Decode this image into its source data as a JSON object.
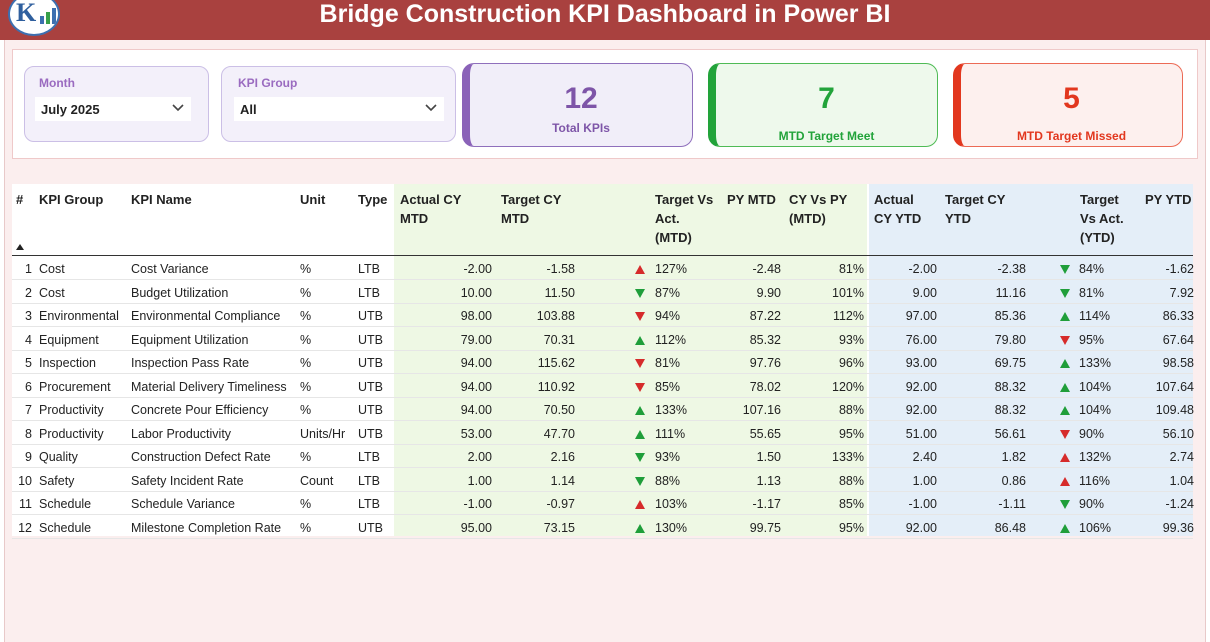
{
  "header": {
    "title": "Bridge Construction KPI Dashboard in Power BI"
  },
  "slicers": {
    "month": {
      "label": "Month",
      "value": "July 2025"
    },
    "kpi_group": {
      "label": "KPI Group",
      "value": "All"
    }
  },
  "cards": {
    "total": {
      "value": "12",
      "label": "Total KPIs",
      "color": "#7e55a8"
    },
    "meet": {
      "value": "7",
      "label": "MTD Target Meet",
      "color": "#22a33a"
    },
    "missed": {
      "value": "5",
      "label": "MTD Target Missed",
      "color": "#e2371e"
    }
  },
  "colors": {
    "mtd_shade": "#eef8e4",
    "ytd_shade": "#e4eef8",
    "up": "#1f9e3a",
    "down": "#d62b2b"
  },
  "table": {
    "headers": {
      "num": "#",
      "group": "KPI Group",
      "name": "KPI Name",
      "unit": "Unit",
      "type": "Type",
      "act_mtd": [
        "Actual CY",
        "MTD"
      ],
      "tgt_mtd": [
        "Target CY",
        "MTD"
      ],
      "tva_mtd": [
        "Target Vs",
        "Act.",
        "(MTD)"
      ],
      "py_mtd": [
        "PY MTD"
      ],
      "cvp_mtd": [
        "CY Vs PY",
        "(MTD)"
      ],
      "act_ytd": [
        "Actual",
        "CY YTD"
      ],
      "tgt_ytd": [
        "Target CY",
        "YTD"
      ],
      "tva_ytd": [
        "Target",
        "Vs Act.",
        "(YTD)"
      ],
      "py_ytd": [
        "PY YTD"
      ]
    },
    "rows": [
      {
        "num": "1",
        "group": "Cost",
        "name": "Cost Variance",
        "unit": "%",
        "type": "LTB",
        "act_mtd": "-2.00",
        "tgt_mtd": "-1.58",
        "mtd_icon": "up-red",
        "tva_mtd": "127%",
        "py_mtd": "-2.48",
        "cvp_mtd": "81%",
        "act_ytd": "-2.00",
        "tgt_ytd": "-2.38",
        "ytd_icon": "down-green",
        "tva_ytd": "84%",
        "py_ytd": "-1.62"
      },
      {
        "num": "2",
        "group": "Cost",
        "name": "Budget Utilization",
        "unit": "%",
        "type": "LTB",
        "act_mtd": "10.00",
        "tgt_mtd": "11.50",
        "mtd_icon": "down-green",
        "tva_mtd": "87%",
        "py_mtd": "9.90",
        "cvp_mtd": "101%",
        "act_ytd": "9.00",
        "tgt_ytd": "11.16",
        "ytd_icon": "down-green",
        "tva_ytd": "81%",
        "py_ytd": "7.92"
      },
      {
        "num": "3",
        "group": "Environmental",
        "name": "Environmental Compliance",
        "unit": "%",
        "type": "UTB",
        "act_mtd": "98.00",
        "tgt_mtd": "103.88",
        "mtd_icon": "down-red",
        "tva_mtd": "94%",
        "py_mtd": "87.22",
        "cvp_mtd": "112%",
        "act_ytd": "97.00",
        "tgt_ytd": "85.36",
        "ytd_icon": "up-green",
        "tva_ytd": "114%",
        "py_ytd": "86.33"
      },
      {
        "num": "4",
        "group": "Equipment",
        "name": "Equipment Utilization",
        "unit": "%",
        "type": "UTB",
        "act_mtd": "79.00",
        "tgt_mtd": "70.31",
        "mtd_icon": "up-green",
        "tva_mtd": "112%",
        "py_mtd": "85.32",
        "cvp_mtd": "93%",
        "act_ytd": "76.00",
        "tgt_ytd": "79.80",
        "ytd_icon": "down-red",
        "tva_ytd": "95%",
        "py_ytd": "67.64"
      },
      {
        "num": "5",
        "group": "Inspection",
        "name": "Inspection Pass Rate",
        "unit": "%",
        "type": "UTB",
        "act_mtd": "94.00",
        "tgt_mtd": "115.62",
        "mtd_icon": "down-red",
        "tva_mtd": "81%",
        "py_mtd": "97.76",
        "cvp_mtd": "96%",
        "act_ytd": "93.00",
        "tgt_ytd": "69.75",
        "ytd_icon": "up-green",
        "tva_ytd": "133%",
        "py_ytd": "98.58"
      },
      {
        "num": "6",
        "group": "Procurement",
        "name": "Material Delivery Timeliness",
        "unit": "%",
        "type": "UTB",
        "act_mtd": "94.00",
        "tgt_mtd": "110.92",
        "mtd_icon": "down-red",
        "tva_mtd": "85%",
        "py_mtd": "78.02",
        "cvp_mtd": "120%",
        "act_ytd": "92.00",
        "tgt_ytd": "88.32",
        "ytd_icon": "up-green",
        "tva_ytd": "104%",
        "py_ytd": "107.64"
      },
      {
        "num": "7",
        "group": "Productivity",
        "name": "Concrete Pour Efficiency",
        "unit": "%",
        "type": "UTB",
        "act_mtd": "94.00",
        "tgt_mtd": "70.50",
        "mtd_icon": "up-green",
        "tva_mtd": "133%",
        "py_mtd": "107.16",
        "cvp_mtd": "88%",
        "act_ytd": "92.00",
        "tgt_ytd": "88.32",
        "ytd_icon": "up-green",
        "tva_ytd": "104%",
        "py_ytd": "109.48"
      },
      {
        "num": "8",
        "group": "Productivity",
        "name": "Labor Productivity",
        "unit": "Units/Hr",
        "type": "UTB",
        "act_mtd": "53.00",
        "tgt_mtd": "47.70",
        "mtd_icon": "up-green",
        "tva_mtd": "111%",
        "py_mtd": "55.65",
        "cvp_mtd": "95%",
        "act_ytd": "51.00",
        "tgt_ytd": "56.61",
        "ytd_icon": "down-red",
        "tva_ytd": "90%",
        "py_ytd": "56.10"
      },
      {
        "num": "9",
        "group": "Quality",
        "name": "Construction Defect Rate",
        "unit": "%",
        "type": "LTB",
        "act_mtd": "2.00",
        "tgt_mtd": "2.16",
        "mtd_icon": "down-green",
        "tva_mtd": "93%",
        "py_mtd": "1.50",
        "cvp_mtd": "133%",
        "act_ytd": "2.40",
        "tgt_ytd": "1.82",
        "ytd_icon": "up-red",
        "tva_ytd": "132%",
        "py_ytd": "2.74"
      },
      {
        "num": "10",
        "group": "Safety",
        "name": "Safety Incident Rate",
        "unit": "Count",
        "type": "LTB",
        "act_mtd": "1.00",
        "tgt_mtd": "1.14",
        "mtd_icon": "down-green",
        "tva_mtd": "88%",
        "py_mtd": "1.13",
        "cvp_mtd": "88%",
        "act_ytd": "1.00",
        "tgt_ytd": "0.86",
        "ytd_icon": "up-red",
        "tva_ytd": "116%",
        "py_ytd": "1.04"
      },
      {
        "num": "11",
        "group": "Schedule",
        "name": "Schedule Variance",
        "unit": "%",
        "type": "LTB",
        "act_mtd": "-1.00",
        "tgt_mtd": "-0.97",
        "mtd_icon": "up-red",
        "tva_mtd": "103%",
        "py_mtd": "-1.17",
        "cvp_mtd": "85%",
        "act_ytd": "-1.00",
        "tgt_ytd": "-1.11",
        "ytd_icon": "down-green",
        "tva_ytd": "90%",
        "py_ytd": "-1.24"
      },
      {
        "num": "12",
        "group": "Schedule",
        "name": "Milestone Completion Rate",
        "unit": "%",
        "type": "UTB",
        "act_mtd": "95.00",
        "tgt_mtd": "73.15",
        "mtd_icon": "up-green",
        "tva_mtd": "130%",
        "py_mtd": "99.75",
        "cvp_mtd": "95%",
        "act_ytd": "92.00",
        "tgt_ytd": "86.48",
        "ytd_icon": "up-green",
        "tva_ytd": "106%",
        "py_ytd": "99.36"
      }
    ]
  }
}
